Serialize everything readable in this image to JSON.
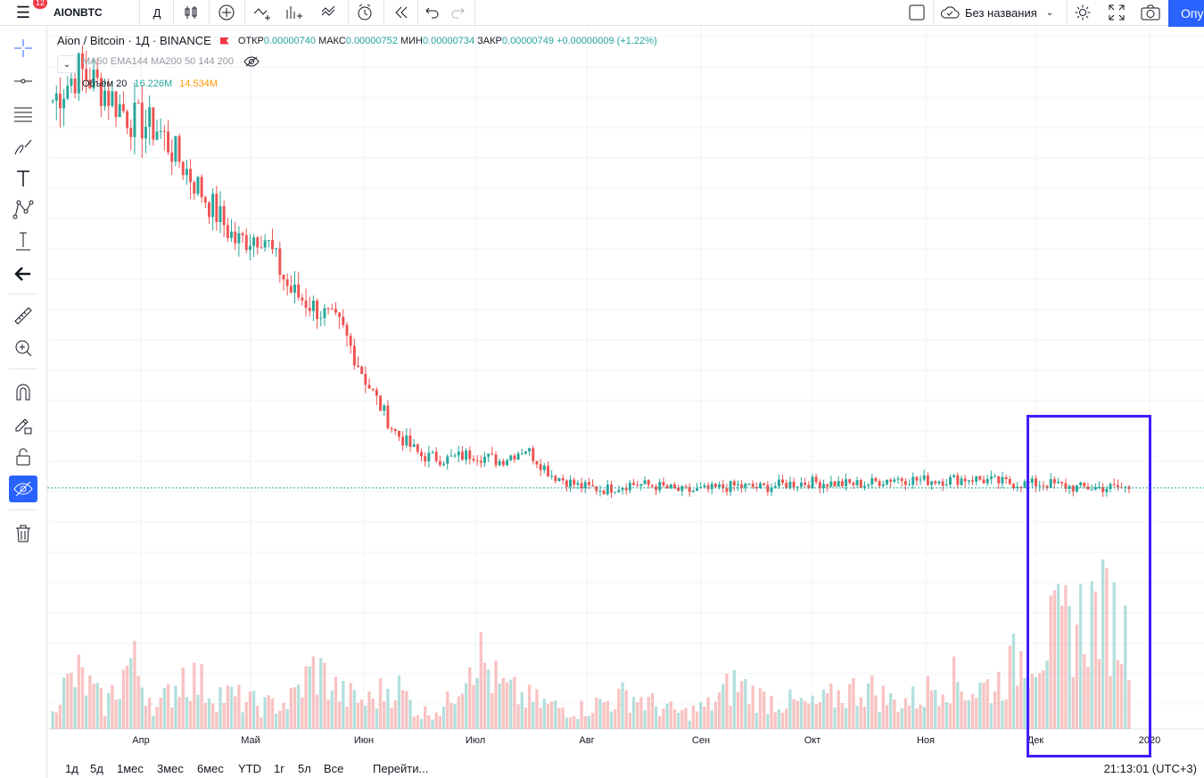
{
  "toolbar": {
    "symbol": "AIONBTC",
    "interval": "Д",
    "layout_name": "Без названия",
    "publish_label": "Опубликовать",
    "notif_count": "12",
    "icons": [
      "menu-icon",
      "candles-icon",
      "add-compare-icon",
      "indicators-icon",
      "financials-icon",
      "templates-icon",
      "alert-icon",
      "replay-icon",
      "undo-icon",
      "redo-icon",
      "layout-icon",
      "cloud-icon",
      "settings-icon",
      "fullscreen-icon",
      "camera-icon"
    ]
  },
  "left_tools": [
    "crosshair-icon",
    "trendline-icon",
    "fib-icon",
    "brush-icon",
    "text-icon",
    "pattern-icon",
    "measure-icon",
    "back-arrow-icon",
    "ruler-icon",
    "zoom-in-icon",
    "magnet-icon",
    "lock-drawings-icon",
    "unlock-icon",
    "hide-icon",
    "trash-icon"
  ],
  "legend": {
    "title": "Aion / Bitcoin · 1Д · BINANCE",
    "open_label": "ОТКР",
    "open": "0.00000740",
    "high_label": "МАКС",
    "high": "0.00000752",
    "low_label": "МИН",
    "low": "0.00000734",
    "close_label": "ЗАКР",
    "close": "0.00000749",
    "change": "+0.00000009 (+1.22%)",
    "indicators": "MA50 EMA144 MA200 50 144 200",
    "volume_label": "Объём 20",
    "volume_value": "16.226M",
    "volume_ma": "14.534M"
  },
  "chart_data": {
    "type": "candlestick",
    "symbol": "AIONBTC",
    "x_labels": [
      "Апр",
      "Май",
      "Июн",
      "Июл",
      "Авг",
      "Сен",
      "Окт",
      "Ноя",
      "Дек",
      "2020"
    ],
    "close_series": [
      2.8e-05,
      2.96e-05,
      2.85e-05,
      2.7e-05,
      2.65e-05,
      2.45e-05,
      2.25e-05,
      2.05e-05,
      2.1e-05,
      1.8e-05,
      1.7e-05,
      1.6e-05,
      1.3e-05,
      1.05e-05,
      9.2e-06,
      9e-06,
      9.3e-06,
      8.9e-06,
      9.6e-06,
      8.2e-06,
      7.6e-06,
      7.4e-06,
      7.7e-06,
      7.6e-06,
      7.3e-06,
      7.4e-06,
      7.6e-06,
      7.5e-06,
      7.7e-06,
      7.8e-06,
      7.7e-06,
      7.7e-06,
      8e-06,
      7.9e-06,
      7.9e-06,
      8e-06,
      7.8e-06,
      7.7e-06,
      7.7e-06,
      7.5e-06,
      7.5e-06,
      7.5e-06
    ],
    "last_price": 7.49e-06,
    "volume_series": [
      40,
      70,
      30,
      90,
      25,
      75,
      50,
      40,
      30,
      35,
      80,
      45,
      35,
      60,
      20,
      30,
      110,
      55,
      40,
      30,
      25,
      35,
      45,
      30,
      20,
      30,
      60,
      40,
      35,
      30,
      45,
      55,
      35,
      40,
      70,
      50,
      60,
      100,
      120,
      140,
      160,
      120
    ],
    "grid": true,
    "highlight_box": "around Dec to 2020"
  },
  "bottom": {
    "ranges": [
      "1д",
      "5д",
      "1мес",
      "3мес",
      "6мес",
      "YTD",
      "1г",
      "5л",
      "Все"
    ],
    "goto": "Перейти...",
    "time": "21:13:01 (UTC+3)"
  }
}
